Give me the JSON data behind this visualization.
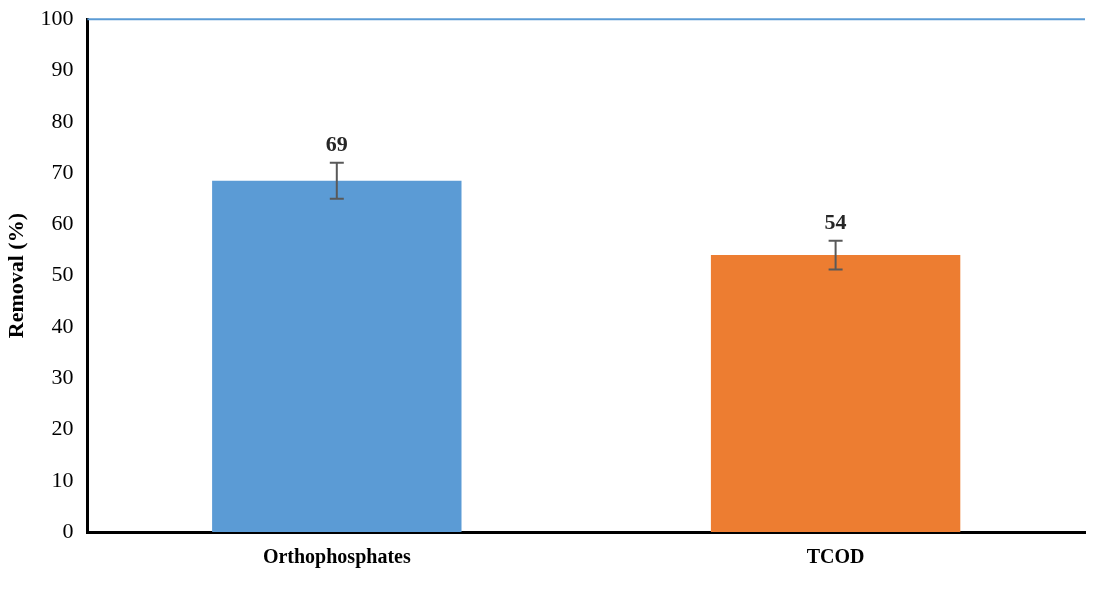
{
  "chart_data": {
    "type": "bar",
    "ylabel": "Removal (%)",
    "categories": [
      "Orthophosphates",
      "TCOD"
    ],
    "values": [
      68.5,
      54
    ],
    "colors": [
      "#5b9bd5",
      "#ed7d31"
    ],
    "errors": [
      3.5,
      2.8
    ],
    "value_labels": [
      "69",
      "54"
    ],
    "ylim": [
      0,
      100
    ],
    "yticks": [
      0,
      10,
      20,
      30,
      40,
      50,
      60,
      70,
      80,
      90,
      100
    ],
    "ref_lines": [
      {
        "axis": "y",
        "value": 100,
        "color": "#5b9bd5"
      }
    ],
    "grid": false,
    "legend": false
  }
}
